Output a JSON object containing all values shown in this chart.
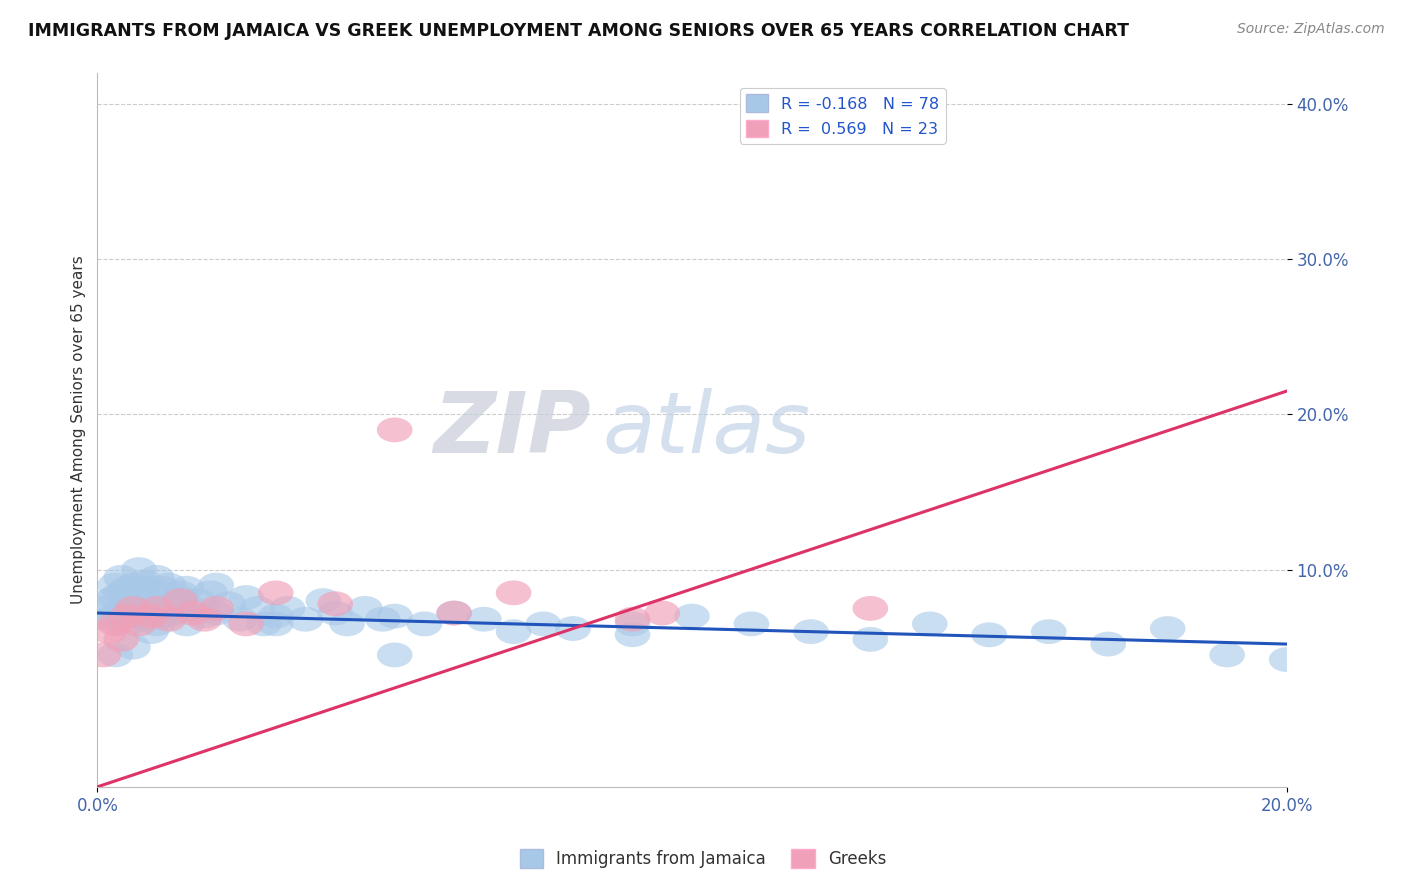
{
  "title": "IMMIGRANTS FROM JAMAICA VS GREEK UNEMPLOYMENT AMONG SENIORS OVER 65 YEARS CORRELATION CHART",
  "source": "Source: ZipAtlas.com",
  "ylabel": "Unemployment Among Seniors over 65 years",
  "xlim": [
    0.0,
    0.2
  ],
  "ylim": [
    -0.04,
    0.42
  ],
  "blue_color": "#a8c8e8",
  "pink_color": "#f0a0b8",
  "blue_line_color": "#2255bb",
  "pink_line_color": "#dd3366",
  "blue_line_y0": 0.072,
  "blue_line_y1": 0.052,
  "pink_line_y0": -0.04,
  "pink_line_y1": 0.215,
  "legend_blue_label": "R = -0.168",
  "legend_blue_n": "N = 78",
  "legend_pink_label": "R =  0.569",
  "legend_pink_n": "N = 23",
  "blue_scatter_x": [
    0.001,
    0.002,
    0.002,
    0.003,
    0.003,
    0.003,
    0.004,
    0.004,
    0.004,
    0.005,
    0.005,
    0.005,
    0.006,
    0.006,
    0.007,
    0.007,
    0.007,
    0.008,
    0.008,
    0.008,
    0.009,
    0.009,
    0.01,
    0.01,
    0.01,
    0.011,
    0.011,
    0.012,
    0.012,
    0.013,
    0.014,
    0.015,
    0.015,
    0.016,
    0.017,
    0.018,
    0.019,
    0.02,
    0.022,
    0.024,
    0.025,
    0.027,
    0.028,
    0.03,
    0.032,
    0.035,
    0.038,
    0.04,
    0.042,
    0.045,
    0.048,
    0.05,
    0.055,
    0.06,
    0.065,
    0.07,
    0.075,
    0.08,
    0.09,
    0.1,
    0.11,
    0.12,
    0.13,
    0.14,
    0.15,
    0.16,
    0.17,
    0.18,
    0.19,
    0.2,
    0.003,
    0.006,
    0.009,
    0.014,
    0.02,
    0.03,
    0.05,
    0.09
  ],
  "blue_scatter_y": [
    0.075,
    0.068,
    0.08,
    0.07,
    0.082,
    0.09,
    0.072,
    0.085,
    0.095,
    0.065,
    0.078,
    0.088,
    0.07,
    0.09,
    0.075,
    0.085,
    0.1,
    0.068,
    0.08,
    0.092,
    0.072,
    0.088,
    0.065,
    0.078,
    0.095,
    0.07,
    0.088,
    0.075,
    0.09,
    0.072,
    0.082,
    0.065,
    0.088,
    0.075,
    0.08,
    0.07,
    0.085,
    0.072,
    0.078,
    0.068,
    0.082,
    0.075,
    0.065,
    0.07,
    0.075,
    0.068,
    0.08,
    0.072,
    0.065,
    0.075,
    0.068,
    0.07,
    0.065,
    0.072,
    0.068,
    0.06,
    0.065,
    0.062,
    0.058,
    0.07,
    0.065,
    0.06,
    0.055,
    0.065,
    0.058,
    0.06,
    0.052,
    0.062,
    0.045,
    0.042,
    0.045,
    0.05,
    0.06,
    0.085,
    0.09,
    0.065,
    0.045,
    0.065
  ],
  "pink_scatter_x": [
    0.001,
    0.002,
    0.003,
    0.004,
    0.005,
    0.006,
    0.007,
    0.009,
    0.01,
    0.012,
    0.014,
    0.016,
    0.018,
    0.02,
    0.025,
    0.03,
    0.04,
    0.05,
    0.06,
    0.07,
    0.09,
    0.095,
    0.13
  ],
  "pink_scatter_y": [
    0.045,
    0.06,
    0.065,
    0.055,
    0.07,
    0.075,
    0.065,
    0.07,
    0.075,
    0.068,
    0.08,
    0.072,
    0.068,
    0.075,
    0.065,
    0.085,
    0.078,
    0.19,
    0.072,
    0.085,
    0.068,
    0.072,
    0.075
  ]
}
